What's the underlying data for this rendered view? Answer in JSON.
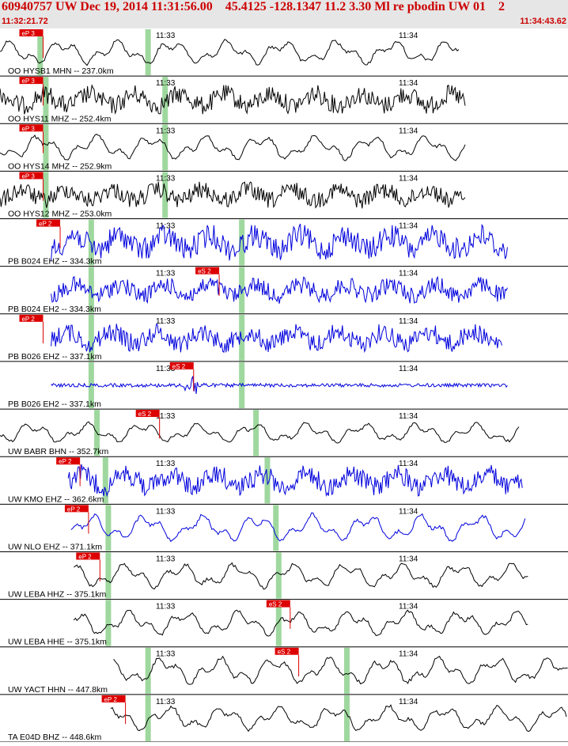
{
  "header": {
    "title": "60940757 UW Dec 19, 2014 11:31:56.00    45.4125 -128.1347 11.2 3.30 Ml re pbodin UW 01    2",
    "start_time": "11:32:21.72",
    "end_time": "11:34:43.62"
  },
  "time_ticks": [
    "11:33",
    "11:34"
  ],
  "colors": {
    "pick": "#dd0000",
    "window": "#9fd89f",
    "black": "#000000",
    "blue": "#0000dd"
  },
  "traces": [
    {
      "label": "OO HYSB1 MHN -- 237.0km",
      "color": "black",
      "pick": "eP 3",
      "pick_frac": 0.055,
      "win": [
        0.07,
        0.26
      ],
      "start": 0.0,
      "end": 0.81,
      "style": "smooth",
      "amp": 0.55
    },
    {
      "label": "OO HYS11 MHZ -- 252.4km",
      "color": "black",
      "pick": "eP 3",
      "pick_frac": 0.055,
      "win": [
        0.08,
        0.29
      ],
      "start": 0.0,
      "end": 0.82,
      "style": "noisy",
      "amp": 0.6
    },
    {
      "label": "OO HYS14 MHZ -- 252.9km",
      "color": "black",
      "pick": "eP 3",
      "pick_frac": 0.055,
      "win": [
        0.08,
        0.29
      ],
      "start": 0.0,
      "end": 0.82,
      "style": "smooth",
      "amp": 0.55
    },
    {
      "label": "OO HYS12 MHZ -- 253.0km",
      "color": "black",
      "pick": "eP 3",
      "pick_frac": 0.055,
      "win": [
        0.08,
        0.29
      ],
      "start": 0.0,
      "end": 0.82,
      "style": "noisy",
      "amp": 0.55
    },
    {
      "label": "PB B024 EHZ -- 334.3km",
      "color": "blue",
      "pick": "eP 2",
      "pick_frac": 0.085,
      "win": [
        0.16,
        0.425
      ],
      "start": 0.09,
      "end": 0.895,
      "style": "noisy",
      "amp": 0.75
    },
    {
      "label": "PB B024 EH2 -- 334.3km",
      "color": "blue",
      "pick": "eS 2",
      "pick_frac": 0.365,
      "win": [
        0.16,
        0.425
      ],
      "start": 0.09,
      "end": 0.895,
      "style": "noisy",
      "amp": 0.55
    },
    {
      "label": "PB B026 EHZ -- 337.1km",
      "color": "blue",
      "pick": "eP 2",
      "pick_frac": 0.055,
      "win": [
        0.16,
        0.425
      ],
      "start": 0.09,
      "end": 0.885,
      "style": "noisy",
      "amp": 0.6
    },
    {
      "label": "PB B026 EH2 -- 337.1km",
      "color": "blue",
      "pick": "eS 2",
      "pick_frac": 0.32,
      "win": [
        0.16,
        0.425
      ],
      "start": 0.09,
      "end": 0.895,
      "style": "burst",
      "amp": 0.35
    },
    {
      "label": "UW BABR BHN -- 352.7km",
      "color": "black",
      "pick": "eS 2",
      "pick_frac": 0.26,
      "win": [
        0.17,
        0.45
      ],
      "start": 0.0,
      "end": 0.915,
      "style": "smooth",
      "amp": 0.45
    },
    {
      "label": "UW KMO EHZ -- 362.6km",
      "color": "blue",
      "pick": "eP 2",
      "pick_frac": 0.12,
      "win": [
        0.185,
        0.47
      ],
      "start": 0.12,
      "end": 0.92,
      "style": "noisy",
      "amp": 0.65
    },
    {
      "label": "UW NLO EHZ -- 371.1km",
      "color": "blue",
      "pick": "eP 2",
      "pick_frac": 0.135,
      "win": [
        0.19,
        0.485
      ],
      "start": 0.125,
      "end": 0.925,
      "style": "smooth",
      "amp": 0.6
    },
    {
      "label": "UW LEBA HHZ -- 375.1km",
      "color": "black",
      "pick": "eP 2",
      "pick_frac": 0.155,
      "win": [
        0.19,
        0.49
      ],
      "start": 0.13,
      "end": 0.93,
      "style": "smooth",
      "amp": 0.55
    },
    {
      "label": "UW LEBA HHE -- 375.1km",
      "color": "black",
      "pick": "eS 2",
      "pick_frac": 0.49,
      "win": [
        0.19,
        0.49
      ],
      "start": 0.13,
      "end": 0.93,
      "style": "smooth",
      "amp": 0.55
    },
    {
      "label": "UW YACT HHN -- 447.8km",
      "color": "black",
      "pick": "eS 2",
      "pick_frac": 0.505,
      "win": [
        0.26,
        0.61
      ],
      "start": 0.2,
      "end": 1.0,
      "style": "smooth",
      "amp": 0.6
    },
    {
      "label": "TA E04D BHZ -- 448.6km",
      "color": "black",
      "pick": "eP 2",
      "pick_frac": 0.2,
      "win": [
        0.26,
        0.61
      ],
      "start": 0.195,
      "end": 1.0,
      "style": "smooth",
      "amp": 0.55
    }
  ]
}
